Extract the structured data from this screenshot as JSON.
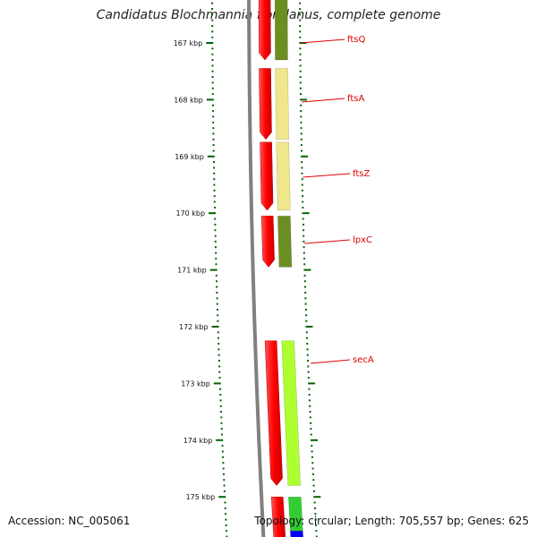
{
  "title": "Candidatus Blochmannia floridanus, complete genome",
  "accession": "Accession: NC_005061",
  "summary": "Topology: circular; Length: 705,557 bp; Genes: 625",
  "ticks": [
    {
      "kbp": 167,
      "label": "167 kbp"
    },
    {
      "kbp": 168,
      "label": "168 kbp"
    },
    {
      "kbp": 169,
      "label": "169 kbp"
    },
    {
      "kbp": 170,
      "label": "170 kbp"
    },
    {
      "kbp": 171,
      "label": "171 kbp"
    },
    {
      "kbp": 172,
      "label": "172 kbp"
    },
    {
      "kbp": 173,
      "label": "173 kbp"
    },
    {
      "kbp": 174,
      "label": "174 kbp"
    },
    {
      "kbp": 175,
      "label": "175 kbp"
    }
  ],
  "genes": [
    {
      "name": "ftsQ",
      "start_kbp": 166.2,
      "end_kbp": 167.3,
      "color": "#6b8e23"
    },
    {
      "name": "ftsA",
      "start_kbp": 167.45,
      "end_kbp": 168.7,
      "color": "#f0e68c"
    },
    {
      "name": "ftsZ",
      "start_kbp": 168.75,
      "end_kbp": 169.95,
      "color": "#f0e68c"
    },
    {
      "name": "lpxC",
      "start_kbp": 170.05,
      "end_kbp": 170.95,
      "color": "#6b8e23"
    },
    {
      "name": "secA",
      "start_kbp": 172.25,
      "end_kbp": 174.8,
      "color": "#adff2f"
    }
  ],
  "cds_track": [
    {
      "start_kbp": 166.2,
      "end_kbp": 167.3
    },
    {
      "start_kbp": 167.45,
      "end_kbp": 168.7
    },
    {
      "start_kbp": 168.75,
      "end_kbp": 169.95
    },
    {
      "start_kbp": 170.05,
      "end_kbp": 170.95
    },
    {
      "start_kbp": 172.25,
      "end_kbp": 174.8
    },
    {
      "start_kbp": 175.0,
      "end_kbp": 176.0
    }
  ],
  "partial_genes": [
    {
      "start_kbp": 175.0,
      "end_kbp": 175.6,
      "color": "#32cd32"
    },
    {
      "start_kbp": 175.6,
      "end_kbp": 176.0,
      "color": "#0000ff"
    }
  ],
  "colors": {
    "cds": "#ff0000",
    "backbone": "#808080",
    "ticks": "#006400",
    "label_line": "#e00000"
  }
}
